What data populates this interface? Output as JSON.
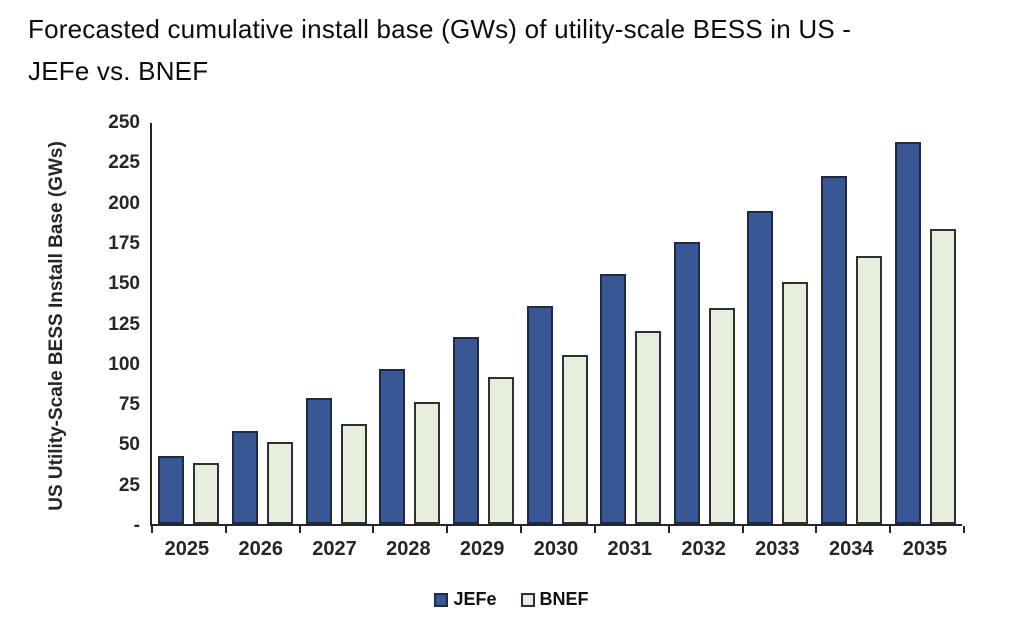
{
  "page": {
    "background": "#ffffff"
  },
  "chart_data": {
    "type": "bar",
    "title": "Forecasted cumulative install base (GWs) of utility-scale BESS in US - JEFe vs. BNEF",
    "title_lines": [
      "Forecasted cumulative install base (GWs) of utility-scale BESS in US -",
      "JEFe vs. BNEF"
    ],
    "xlabel": "",
    "ylabel": "US Utility-Scale BESS Install Base (GWs)",
    "ylim": [
      0,
      250
    ],
    "y_tick_step": 25,
    "y_tick_labels": [
      "-",
      "25",
      "50",
      "75",
      "100",
      "125",
      "150",
      "175",
      "200",
      "225",
      "250"
    ],
    "grid": false,
    "legend_position": "bottom-center",
    "categories": [
      "2025",
      "2026",
      "2027",
      "2028",
      "2029",
      "2030",
      "2031",
      "2032",
      "2033",
      "2034",
      "2035"
    ],
    "series": [
      {
        "name": "JEFe",
        "color": "#3A5795",
        "border_color": "#1F2A44",
        "values": [
          42,
          58,
          78,
          96,
          116,
          135,
          155,
          175,
          194,
          216,
          237
        ]
      },
      {
        "name": "BNEF",
        "color": "#E6EFDD",
        "border_color": "#303030",
        "values": [
          38,
          51,
          62,
          76,
          91,
          105,
          120,
          134,
          150,
          166,
          183
        ]
      }
    ]
  }
}
